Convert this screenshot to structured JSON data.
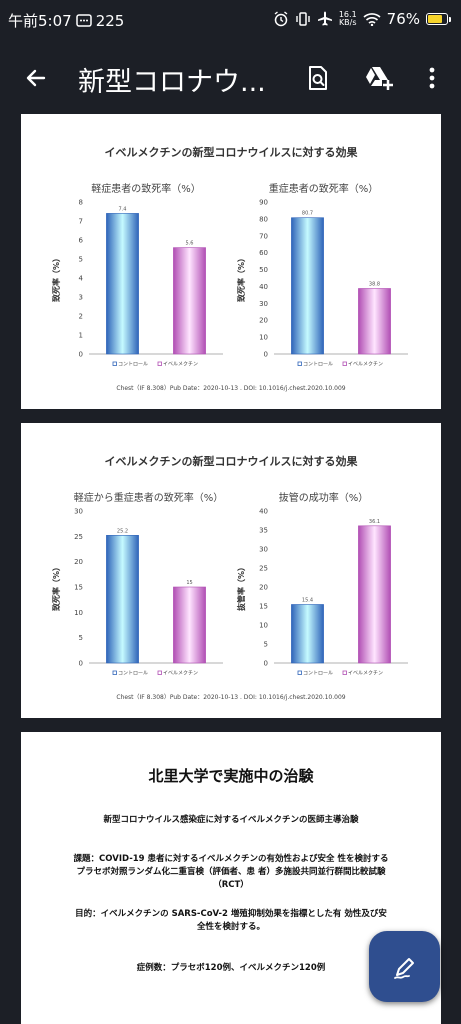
{
  "status_bar": {
    "time": "午前5:07",
    "message_count": "225",
    "net_speed_value": "16.1",
    "net_speed_unit": "KB/s",
    "battery_percent": "76%",
    "battery_level": 0.76
  },
  "app_bar": {
    "title": "新型コロナウ..."
  },
  "page1": {
    "title": "イベルメクチンの新型コロナウイルスに対する効果",
    "citation": "Chest（IF 8.308）Pub Date：2020-10-13 . DOI: 10.1016/j.chest.2020.10.009"
  },
  "page2": {
    "title": "イベルメクチンの新型コロナウイルスに対する効果",
    "citation": "Chest（IF 8.308）Pub Date：2020-10-13 . DOI: 10.1016/j.chest.2020.10.009"
  },
  "page3": {
    "heading": "北里大学で実施中の治験",
    "subheading": "新型コロナウイルス感染症に対するイベルメクチンの医師主導治験",
    "subject": "課題：COVID-19 患者に対するイベルメクチンの有効性および安全 性を検討するプラセボ対照ランダム化二重盲検（評価者、患 者）多施設共同並行群間比較試験（RCT）",
    "purpose": "目的：イベルメクチンの SARS-CoV-2 増殖抑制効果を指標とした有 効性及び安全性を検討する。",
    "cases": "症例数：プラセボ120例、イベルメクチン120例"
  },
  "chart_data": [
    {
      "type": "bar",
      "title": "軽症患者の致死率（%）",
      "ylabel": "致死率（%）",
      "ylim": [
        0,
        8
      ],
      "yticks": [
        "0",
        "1",
        "2",
        "3",
        "4",
        "5",
        "6",
        "7",
        "8"
      ],
      "categories": [
        "コントロール",
        "イベルメクチン"
      ],
      "values": [
        7.4,
        5.6
      ],
      "value_labels": [
        "7.4",
        "5.6"
      ],
      "colors": [
        "#2f64b9",
        "#b14fb4"
      ],
      "legend": [
        "コントロール",
        "イベルメクチン"
      ]
    },
    {
      "type": "bar",
      "title": "重症患者の致死率（%）",
      "ylabel": "致死率（%）",
      "ylim": [
        0,
        90
      ],
      "yticks": [
        "0",
        "10",
        "20",
        "30",
        "40",
        "50",
        "60",
        "70",
        "80",
        "90"
      ],
      "categories": [
        "コントロール",
        "イベルメクチン"
      ],
      "values": [
        80.7,
        38.8
      ],
      "value_labels": [
        "80.7",
        "38.8"
      ],
      "colors": [
        "#2f64b9",
        "#b14fb4"
      ],
      "legend": [
        "コントロール",
        "イベルメクチン"
      ]
    },
    {
      "type": "bar",
      "title": "軽症から重症患者の致死率（%）",
      "ylabel": "致死率（%）",
      "ylim": [
        0,
        30
      ],
      "yticks": [
        "0",
        "5",
        "10",
        "15",
        "20",
        "25",
        "30"
      ],
      "categories": [
        "コントロール",
        "イベルメクチン"
      ],
      "values": [
        25.2,
        15
      ],
      "value_labels": [
        "25.2",
        "15"
      ],
      "colors": [
        "#2f64b9",
        "#b14fb4"
      ],
      "legend": [
        "コントロール",
        "イベルメクチン"
      ]
    },
    {
      "type": "bar",
      "title": "抜管の成功率（%）",
      "ylabel": "抜管率（%）",
      "ylim": [
        0,
        40
      ],
      "yticks": [
        "0",
        "5",
        "10",
        "15",
        "20",
        "25",
        "30",
        "35",
        "40"
      ],
      "categories": [
        "コントロール",
        "イベルメクチン"
      ],
      "values": [
        15.4,
        36.1
      ],
      "value_labels": [
        "15.4",
        "36.1"
      ],
      "colors": [
        "#2f64b9",
        "#b14fb4"
      ],
      "legend": [
        "コントロール",
        "イベルメクチン"
      ]
    }
  ]
}
